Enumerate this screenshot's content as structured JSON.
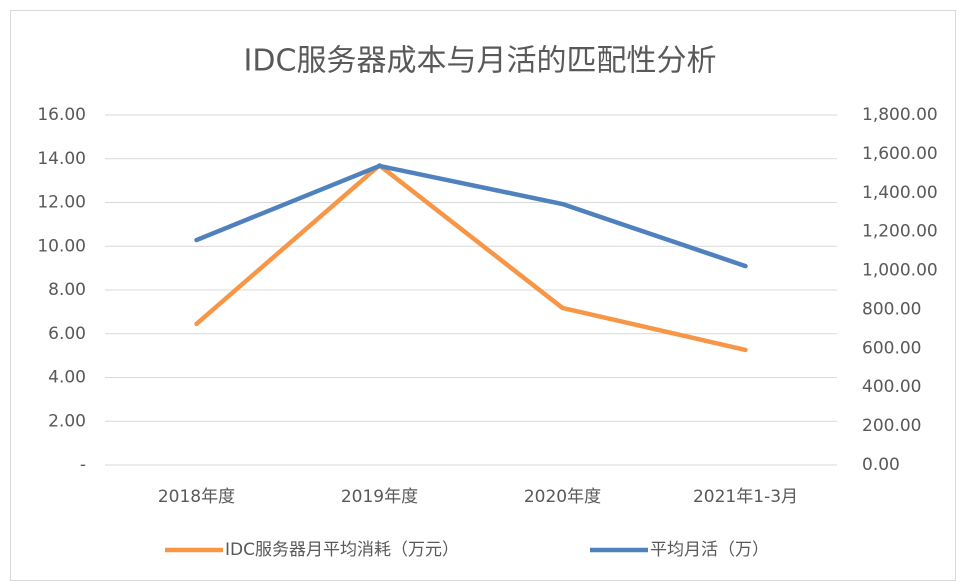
{
  "chart_data": {
    "type": "line",
    "title": "IDC服务器成本与月活的匹配性分析",
    "categories": [
      "2018年度",
      "2019年度",
      "2020年度",
      "2021年1-3月"
    ],
    "series": [
      {
        "name": "IDC服务器月平均消耗（万元）",
        "color": "#f79646",
        "values": [
          6.45,
          13.7,
          7.18,
          5.26
        ]
      },
      {
        "name": "平均月活（万）",
        "color": "#4f81bd",
        "values": [
          1157,
          1538,
          1342,
          1023
        ],
        "axis": "y2"
      }
    ],
    "ylim": [
      0,
      16
    ],
    "yticks": [
      {
        "value": 0,
        "label": "-"
      },
      {
        "value": 2,
        "label": "2.00"
      },
      {
        "value": 4,
        "label": "4.00"
      },
      {
        "value": 6,
        "label": "6.00"
      },
      {
        "value": 8,
        "label": "8.00"
      },
      {
        "value": 10,
        "label": "10.00"
      },
      {
        "value": 12,
        "label": "12.00"
      },
      {
        "value": 14,
        "label": "14.00"
      },
      {
        "value": 16,
        "label": "16.00"
      }
    ],
    "y2lim": [
      0,
      1800
    ],
    "y2ticks": [
      {
        "value": 0,
        "label": "0.00"
      },
      {
        "value": 200,
        "label": "200.00"
      },
      {
        "value": 400,
        "label": "400.00"
      },
      {
        "value": 600,
        "label": "600.00"
      },
      {
        "value": 800,
        "label": "800.00"
      },
      {
        "value": 1000,
        "label": "1,000.00"
      },
      {
        "value": 1200,
        "label": "1,200.00"
      },
      {
        "value": 1400,
        "label": "1,400.00"
      },
      {
        "value": 1600,
        "label": "1,600.00"
      },
      {
        "value": 1800,
        "label": "1,800.00"
      }
    ],
    "grid": true,
    "legend": "bottom"
  }
}
